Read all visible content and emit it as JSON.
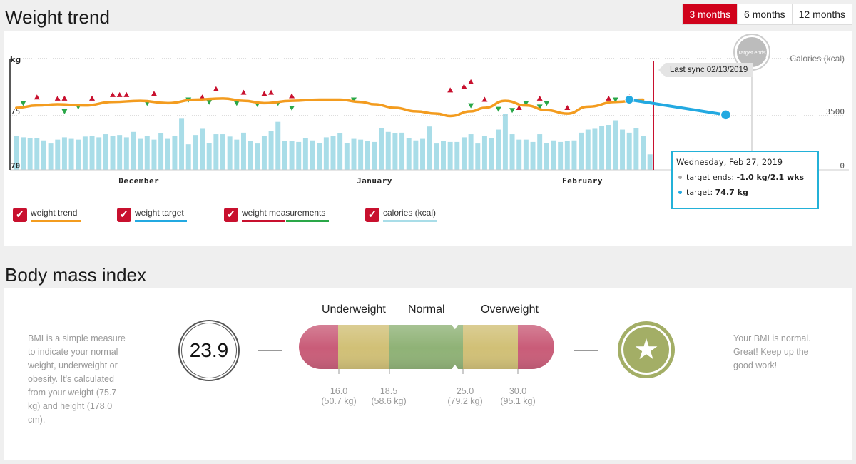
{
  "weight_section": {
    "title": "Weight trend",
    "ranges": [
      {
        "label": "3 months",
        "active": true
      },
      {
        "label": "6 months",
        "active": false
      },
      {
        "label": "12 months",
        "active": false
      }
    ],
    "y_unit": "kg",
    "right_unit": "Calories (kcal)",
    "target_badge": "Target ends",
    "last_sync": "Last sync 02/13/2019",
    "tooltip": {
      "date": "Wednesday, Feb 27, 2019",
      "row1_label": "target ends:",
      "row1_value": "-1.0 kg/2.1 wks",
      "row2_label": "target:",
      "row2_value": "74.7 kg"
    },
    "legend": [
      {
        "label": "weight trend",
        "colors": [
          "#f39c1f"
        ]
      },
      {
        "label": "weight target",
        "colors": [
          "#23a9e1"
        ]
      },
      {
        "label": "weight measurements",
        "colors": [
          "#c8102e",
          "#2aa748"
        ]
      },
      {
        "label": "calories (kcal)",
        "colors": [
          "#a9dde8"
        ]
      }
    ],
    "check_mark": "✓"
  },
  "chart_data": {
    "type": "line",
    "x_ticks": [
      "December",
      "January",
      "February"
    ],
    "y_ticks": [
      "75",
      "70"
    ],
    "ylim": [
      70,
      79.5
    ],
    "calorie_tick": "3500",
    "calorie_zero": "0",
    "calories_kcal": [
      2200,
      2100,
      2050,
      2050,
      1900,
      1700,
      1950,
      2100,
      2000,
      1950,
      2150,
      2200,
      2100,
      2300,
      2200,
      2250,
      2100,
      2450,
      2000,
      2200,
      1950,
      2350,
      2000,
      2200,
      3300,
      1650,
      2250,
      2650,
      1750,
      2300,
      2300,
      2150,
      1950,
      2400,
      1850,
      1700,
      2200,
      2500,
      3100,
      1850,
      1850,
      1800,
      2050,
      1900,
      1750,
      2100,
      2200,
      2350,
      1750,
      2000,
      1950,
      1850,
      1800,
      2700,
      2450,
      2350,
      2400,
      2050,
      1900,
      2000,
      2800,
      1700,
      1850,
      1800,
      1800,
      2100,
      2300,
      1700,
      2200,
      2050,
      2600,
      3600,
      2300,
      1950,
      1950,
      1800,
      2300,
      1750,
      1900,
      1800,
      1850,
      1900,
      2400,
      2600,
      2650,
      2850,
      2900,
      3200,
      2600,
      2400,
      2700,
      2200,
      1000
    ],
    "weight_trend": {
      "x": [
        0,
        3,
        6,
        10,
        14,
        18,
        22,
        26,
        30,
        33,
        36,
        40,
        44,
        47,
        50,
        52,
        55,
        58,
        61,
        63,
        66,
        68,
        71,
        74,
        77,
        80,
        83,
        87,
        91
      ],
      "y": [
        75.3,
        75.5,
        75.6,
        75.5,
        75.8,
        75.9,
        75.7,
        76.0,
        76.1,
        75.9,
        75.7,
        75.9,
        76.0,
        76.0,
        75.8,
        75.6,
        75.3,
        75.0,
        74.8,
        74.6,
        75.0,
        75.3,
        75.9,
        75.5,
        75.1,
        74.8,
        75.4,
        75.8,
        76.0
      ]
    },
    "weight_up": [
      {
        "x": 3,
        "y": 76.2
      },
      {
        "x": 6,
        "y": 76.1
      },
      {
        "x": 7,
        "y": 76.1
      },
      {
        "x": 11,
        "y": 76.1
      },
      {
        "x": 14,
        "y": 76.4
      },
      {
        "x": 15,
        "y": 76.4
      },
      {
        "x": 16,
        "y": 76.4
      },
      {
        "x": 20,
        "y": 76.5
      },
      {
        "x": 27,
        "y": 76.2
      },
      {
        "x": 29,
        "y": 76.9
      },
      {
        "x": 33,
        "y": 76.6
      },
      {
        "x": 36,
        "y": 76.5
      },
      {
        "x": 37,
        "y": 76.6
      },
      {
        "x": 40,
        "y": 76.3
      },
      {
        "x": 63,
        "y": 76.8
      },
      {
        "x": 65,
        "y": 77.1
      },
      {
        "x": 66,
        "y": 77.5
      },
      {
        "x": 68,
        "y": 76.0
      },
      {
        "x": 73,
        "y": 75.3
      },
      {
        "x": 74,
        "y": 75.6
      },
      {
        "x": 76,
        "y": 76.1
      },
      {
        "x": 80,
        "y": 75.3
      },
      {
        "x": 86,
        "y": 76.1
      },
      {
        "x": 89,
        "y": 76.2
      }
    ],
    "weight_down": [
      {
        "x": 1,
        "y": 75.7
      },
      {
        "x": 7,
        "y": 75.0
      },
      {
        "x": 9,
        "y": 75.4
      },
      {
        "x": 19,
        "y": 75.7
      },
      {
        "x": 25,
        "y": 76.0
      },
      {
        "x": 28,
        "y": 75.8
      },
      {
        "x": 32,
        "y": 75.7
      },
      {
        "x": 35,
        "y": 75.6
      },
      {
        "x": 38,
        "y": 75.7
      },
      {
        "x": 40,
        "y": 75.3
      },
      {
        "x": 49,
        "y": 76.0
      },
      {
        "x": 66,
        "y": 75.5
      },
      {
        "x": 70,
        "y": 75.2
      },
      {
        "x": 72,
        "y": 75.1
      },
      {
        "x": 74,
        "y": 75.7
      },
      {
        "x": 76,
        "y": 75.4
      },
      {
        "x": 77,
        "y": 75.7
      },
      {
        "x": 87,
        "y": 76.0
      },
      {
        "x": 89,
        "y": 76.1
      }
    ],
    "weight_target": {
      "x": [
        89,
        103
      ],
      "y": [
        76.0,
        74.7
      ]
    }
  },
  "bmi_section": {
    "title": "Body mass index",
    "description": "BMI is a simple measure to indicate your normal weight, underweight or obesity. It's calculated from your weight (75.7 kg) and height (178.0 cm).",
    "value": "23.9",
    "categories": [
      "Underweight",
      "Normal",
      "Overweight"
    ],
    "ticks": [
      {
        "bmi": "16.0",
        "kg": "(50.7 kg)"
      },
      {
        "bmi": "18.5",
        "kg": "(58.6 kg)"
      },
      {
        "bmi": "25.0",
        "kg": "(79.2 kg)"
      },
      {
        "bmi": "30.0",
        "kg": "(95.1 kg)"
      }
    ],
    "message": "Your BMI is normal. Great! Keep up the good work!",
    "badge_icon": "star-icon"
  }
}
